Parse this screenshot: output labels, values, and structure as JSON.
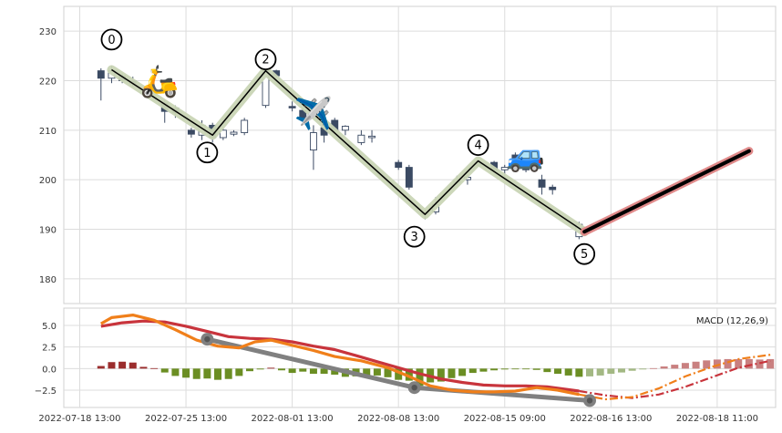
{
  "chart_data": [
    {
      "type": "candlestick",
      "panel": "price",
      "ylim": [
        175,
        235
      ],
      "y_ticks": [
        180,
        190,
        200,
        210,
        220,
        230
      ],
      "grid": true,
      "colors": {
        "down_candle": "#3b4a63",
        "up_candle": "#ffffff",
        "wave_halo": "#c9d5b5",
        "wave_line": "#000000",
        "projection_halo": "#e08a8a",
        "projection_line": "#000000"
      },
      "candles": [
        {
          "t": 0.0,
          "o": 222.0,
          "h": 222.5,
          "l": 216.0,
          "c": 220.5
        },
        {
          "t": 0.1,
          "o": 220.5,
          "h": 223.0,
          "l": 219.5,
          "c": 222.0
        },
        {
          "t": 0.2,
          "o": 221.0,
          "h": 221.5,
          "l": 219.5,
          "c": 220.0
        },
        {
          "t": 0.3,
          "o": 220.0,
          "h": 220.8,
          "l": 218.8,
          "c": 219.5
        },
        {
          "t": 0.6,
          "o": 215.5,
          "h": 216.0,
          "l": 211.5,
          "c": 213.8
        },
        {
          "t": 0.7,
          "o": 214.5,
          "h": 215.0,
          "l": 212.5,
          "c": 213.5
        },
        {
          "t": 0.85,
          "o": 210.0,
          "h": 210.5,
          "l": 208.5,
          "c": 209.2
        },
        {
          "t": 0.95,
          "o": 209.0,
          "h": 212.0,
          "l": 208.0,
          "c": 211.0
        },
        {
          "t": 1.05,
          "o": 211.0,
          "h": 211.5,
          "l": 207.5,
          "c": 208.5
        },
        {
          "t": 1.15,
          "o": 208.5,
          "h": 210.5,
          "l": 208.0,
          "c": 210.0
        },
        {
          "t": 1.25,
          "o": 209.2,
          "h": 210.0,
          "l": 208.8,
          "c": 209.6
        },
        {
          "t": 1.35,
          "o": 209.5,
          "h": 212.5,
          "l": 209.0,
          "c": 212.0
        },
        {
          "t": 1.55,
          "o": 215.0,
          "h": 222.5,
          "l": 214.5,
          "c": 222.0
        },
        {
          "t": 1.65,
          "o": 222.0,
          "h": 222.2,
          "l": 220.5,
          "c": 221.0
        },
        {
          "t": 1.8,
          "o": 214.8,
          "h": 215.8,
          "l": 213.8,
          "c": 214.5
        },
        {
          "t": 1.9,
          "o": 214.0,
          "h": 214.5,
          "l": 212.0,
          "c": 212.5
        },
        {
          "t": 2.0,
          "o": 206.0,
          "h": 211.0,
          "l": 202.0,
          "c": 209.5
        },
        {
          "t": 2.1,
          "o": 210.5,
          "h": 211.0,
          "l": 207.5,
          "c": 209.0
        },
        {
          "t": 2.2,
          "o": 212.0,
          "h": 212.5,
          "l": 209.5,
          "c": 210.0
        },
        {
          "t": 2.3,
          "o": 210.0,
          "h": 211.0,
          "l": 209.0,
          "c": 210.8
        },
        {
          "t": 2.45,
          "o": 207.5,
          "h": 210.0,
          "l": 207.0,
          "c": 209.0
        },
        {
          "t": 2.55,
          "o": 208.5,
          "h": 210.0,
          "l": 207.5,
          "c": 208.8
        },
        {
          "t": 2.8,
          "o": 203.5,
          "h": 204.0,
          "l": 202.0,
          "c": 202.5
        },
        {
          "t": 2.9,
          "o": 202.5,
          "h": 203.0,
          "l": 198.0,
          "c": 198.5
        },
        {
          "t": 3.05,
          "o": 193.0,
          "h": 194.0,
          "l": 192.0,
          "c": 193.3
        },
        {
          "t": 3.15,
          "o": 193.5,
          "h": 196.5,
          "l": 193.0,
          "c": 195.0
        },
        {
          "t": 3.35,
          "o": 199.5,
          "h": 200.8,
          "l": 199.0,
          "c": 200.0
        },
        {
          "t": 3.45,
          "o": 200.0,
          "h": 201.0,
          "l": 199.0,
          "c": 200.5
        },
        {
          "t": 3.55,
          "o": 203.0,
          "h": 203.6,
          "l": 202.8,
          "c": 203.3
        },
        {
          "t": 3.7,
          "o": 203.5,
          "h": 203.8,
          "l": 201.5,
          "c": 202.0
        },
        {
          "t": 3.8,
          "o": 202.0,
          "h": 203.0,
          "l": 200.5,
          "c": 202.5
        },
        {
          "t": 3.9,
          "o": 205.0,
          "h": 205.5,
          "l": 202.0,
          "c": 202.5
        },
        {
          "t": 4.0,
          "o": 202.5,
          "h": 203.5,
          "l": 201.5,
          "c": 202.0
        },
        {
          "t": 4.15,
          "o": 200.0,
          "h": 201.0,
          "l": 197.0,
          "c": 198.5
        },
        {
          "t": 4.25,
          "o": 198.5,
          "h": 199.0,
          "l": 197.0,
          "c": 198.0
        },
        {
          "t": 4.5,
          "o": 188.5,
          "h": 191.5,
          "l": 188.0,
          "c": 191.0
        }
      ],
      "wave": [
        {
          "label": "0",
          "t": 0.1,
          "y": 222.2,
          "label_t": 0.1,
          "label_y": 228.3
        },
        {
          "label": "1",
          "t": 1.05,
          "y": 209.0,
          "label_t": 1.0,
          "label_y": 205.5
        },
        {
          "label": "2",
          "t": 1.55,
          "y": 222.0,
          "label_t": 1.55,
          "label_y": 224.3
        },
        {
          "label": "3",
          "t": 3.05,
          "y": 193.0,
          "label_t": 2.95,
          "label_y": 188.5
        },
        {
          "label": "4",
          "t": 3.55,
          "y": 203.8,
          "label_t": 3.55,
          "label_y": 207.0
        },
        {
          "label": "5",
          "t": 4.55,
          "y": 189.5,
          "label_t": 4.55,
          "label_y": 185.0
        }
      ],
      "projection": {
        "t0": 4.55,
        "y0": 189.5,
        "t1": 6.1,
        "y1": 205.8
      },
      "icons": [
        {
          "name": "scooter-icon",
          "glyph": "🛵",
          "t": 0.55,
          "y": 220.0
        },
        {
          "name": "airplane-icon",
          "glyph": "✈️",
          "t": 2.0,
          "y": 213.5
        },
        {
          "name": "car-icon",
          "glyph": "🚙",
          "t": 4.0,
          "y": 205.0
        }
      ]
    },
    {
      "type": "bar+line",
      "panel": "macd",
      "legend": "MACD (12,26,9)",
      "legend_position": "top-right",
      "ylim": [
        -4.5,
        7
      ],
      "y_ticks": [
        {
          "value": 5.0,
          "label": "5.0"
        },
        {
          "value": 2.5,
          "label": "2.5"
        },
        {
          "value": 0.0,
          "label": "0.0"
        },
        {
          "value": -2.5,
          "label": "−2.5"
        }
      ],
      "x_ticks": [
        {
          "t": -0.2,
          "label": "2022-07-18 13:00"
        },
        {
          "t": 0.8,
          "label": "2022-07-25 13:00"
        },
        {
          "t": 1.8,
          "label": "2022-08-01 13:00"
        },
        {
          "t": 2.8,
          "label": "2022-08-08 13:00"
        },
        {
          "t": 3.8,
          "label": "2022-08-15 09:00"
        },
        {
          "t": 4.8,
          "label": "2022-08-16 13:00"
        },
        {
          "t": 5.8,
          "label": "2022-08-18 11:00"
        }
      ],
      "xlim": [
        -0.35,
        6.35
      ],
      "grid": true,
      "colors": {
        "macd": "#f07f1a",
        "signal": "#c8343c",
        "hist_up": "#9b2d2d",
        "hist_down": "#6b8e23",
        "hist_up_projected": "#c98080",
        "hist_down_projected": "#a3b883",
        "trend": "#808080"
      },
      "histogram": [
        {
          "t": 0.0,
          "v": 0.3
        },
        {
          "t": 0.1,
          "v": 0.75
        },
        {
          "t": 0.2,
          "v": 0.8
        },
        {
          "t": 0.3,
          "v": 0.7
        },
        {
          "t": 0.4,
          "v": 0.2
        },
        {
          "t": 0.5,
          "v": 0.05
        },
        {
          "t": 0.6,
          "v": -0.45
        },
        {
          "t": 0.7,
          "v": -0.85
        },
        {
          "t": 0.8,
          "v": -1.05
        },
        {
          "t": 0.9,
          "v": -1.2
        },
        {
          "t": 1.0,
          "v": -1.15
        },
        {
          "t": 1.1,
          "v": -1.3
        },
        {
          "t": 1.2,
          "v": -1.2
        },
        {
          "t": 1.3,
          "v": -0.85
        },
        {
          "t": 1.4,
          "v": -0.3
        },
        {
          "t": 1.5,
          "v": -0.1
        },
        {
          "t": 1.6,
          "v": 0.1
        },
        {
          "t": 1.7,
          "v": -0.2
        },
        {
          "t": 1.8,
          "v": -0.5
        },
        {
          "t": 1.9,
          "v": -0.35
        },
        {
          "t": 2.0,
          "v": -0.6
        },
        {
          "t": 2.1,
          "v": -0.6
        },
        {
          "t": 2.2,
          "v": -0.7
        },
        {
          "t": 2.3,
          "v": -0.95
        },
        {
          "t": 2.4,
          "v": -0.9
        },
        {
          "t": 2.5,
          "v": -0.95
        },
        {
          "t": 2.6,
          "v": -0.8
        },
        {
          "t": 2.7,
          "v": -1.0
        },
        {
          "t": 2.8,
          "v": -1.3
        },
        {
          "t": 2.9,
          "v": -1.4
        },
        {
          "t": 3.0,
          "v": -2.0
        },
        {
          "t": 3.1,
          "v": -1.6
        },
        {
          "t": 3.2,
          "v": -1.5
        },
        {
          "t": 3.3,
          "v": -1.1
        },
        {
          "t": 3.4,
          "v": -0.85
        },
        {
          "t": 3.5,
          "v": -0.5
        },
        {
          "t": 3.6,
          "v": -0.35
        },
        {
          "t": 3.7,
          "v": -0.2
        },
        {
          "t": 3.8,
          "v": -0.1
        },
        {
          "t": 3.9,
          "v": -0.05
        },
        {
          "t": 4.0,
          "v": -0.05
        },
        {
          "t": 4.1,
          "v": -0.15
        },
        {
          "t": 4.2,
          "v": -0.4
        },
        {
          "t": 4.3,
          "v": -0.6
        },
        {
          "t": 4.4,
          "v": -0.8
        },
        {
          "t": 4.5,
          "v": -0.95
        },
        {
          "t": 4.6,
          "v": -0.9,
          "projected": true
        },
        {
          "t": 4.7,
          "v": -0.8,
          "projected": true
        },
        {
          "t": 4.8,
          "v": -0.6,
          "projected": true
        },
        {
          "t": 4.9,
          "v": -0.45,
          "projected": true
        },
        {
          "t": 5.0,
          "v": -0.25,
          "projected": true
        },
        {
          "t": 5.1,
          "v": -0.1,
          "projected": true
        },
        {
          "t": 5.2,
          "v": 0.05,
          "projected": true
        },
        {
          "t": 5.3,
          "v": 0.25,
          "projected": true
        },
        {
          "t": 5.4,
          "v": 0.45,
          "projected": true
        },
        {
          "t": 5.5,
          "v": 0.65,
          "projected": true
        },
        {
          "t": 5.6,
          "v": 0.8,
          "projected": true
        },
        {
          "t": 5.7,
          "v": 0.95,
          "projected": true
        },
        {
          "t": 5.8,
          "v": 1.05,
          "projected": true
        },
        {
          "t": 5.9,
          "v": 1.1,
          "projected": true
        },
        {
          "t": 6.0,
          "v": 1.1,
          "projected": true
        },
        {
          "t": 6.1,
          "v": 1.1,
          "projected": true
        },
        {
          "t": 6.2,
          "v": 1.05,
          "projected": true
        },
        {
          "t": 6.3,
          "v": 1.1,
          "projected": true
        }
      ],
      "macd_line": [
        [
          0.0,
          5.2
        ],
        [
          0.1,
          5.9
        ],
        [
          0.3,
          6.2
        ],
        [
          0.5,
          5.6
        ],
        [
          0.7,
          4.5
        ],
        [
          0.9,
          3.3
        ],
        [
          1.1,
          2.6
        ],
        [
          1.3,
          2.4
        ],
        [
          1.45,
          3.1
        ],
        [
          1.6,
          3.3
        ],
        [
          1.8,
          2.7
        ],
        [
          2.0,
          2.1
        ],
        [
          2.2,
          1.4
        ],
        [
          2.45,
          0.9
        ],
        [
          2.7,
          0.1
        ],
        [
          2.9,
          -0.9
        ],
        [
          3.1,
          -2.0
        ],
        [
          3.3,
          -2.5
        ],
        [
          3.5,
          -2.7
        ],
        [
          3.7,
          -2.7
        ],
        [
          3.9,
          -2.6
        ],
        [
          4.1,
          -2.2
        ],
        [
          4.3,
          -2.5
        ],
        [
          4.5,
          -3.0
        ]
      ],
      "macd_projection": [
        [
          4.5,
          -3.0
        ],
        [
          4.75,
          -3.55
        ],
        [
          5.0,
          -3.3
        ],
        [
          5.25,
          -2.3
        ],
        [
          5.5,
          -0.9
        ],
        [
          5.75,
          0.2
        ],
        [
          6.0,
          1.1
        ],
        [
          6.3,
          1.6
        ]
      ],
      "signal_line": [
        [
          0.0,
          4.9
        ],
        [
          0.2,
          5.3
        ],
        [
          0.4,
          5.5
        ],
        [
          0.6,
          5.4
        ],
        [
          0.8,
          4.9
        ],
        [
          1.0,
          4.3
        ],
        [
          1.2,
          3.7
        ],
        [
          1.4,
          3.5
        ],
        [
          1.6,
          3.4
        ],
        [
          1.8,
          3.1
        ],
        [
          2.0,
          2.6
        ],
        [
          2.2,
          2.2
        ],
        [
          2.4,
          1.5
        ],
        [
          2.6,
          0.8
        ],
        [
          2.8,
          0.1
        ],
        [
          3.0,
          -0.6
        ],
        [
          3.2,
          -1.2
        ],
        [
          3.4,
          -1.6
        ],
        [
          3.6,
          -1.9
        ],
        [
          3.8,
          -2.0
        ],
        [
          4.0,
          -2.0
        ],
        [
          4.2,
          -2.1
        ],
        [
          4.5,
          -2.6
        ]
      ],
      "signal_projection": [
        [
          4.5,
          -2.6
        ],
        [
          4.75,
          -3.1
        ],
        [
          5.0,
          -3.4
        ],
        [
          5.25,
          -3.0
        ],
        [
          5.5,
          -2.1
        ],
        [
          5.75,
          -1.0
        ],
        [
          6.0,
          0.1
        ],
        [
          6.3,
          0.9
        ]
      ],
      "trend_points": [
        [
          1.0,
          3.4
        ],
        [
          2.95,
          -2.2
        ],
        [
          4.6,
          -3.7
        ]
      ]
    }
  ]
}
